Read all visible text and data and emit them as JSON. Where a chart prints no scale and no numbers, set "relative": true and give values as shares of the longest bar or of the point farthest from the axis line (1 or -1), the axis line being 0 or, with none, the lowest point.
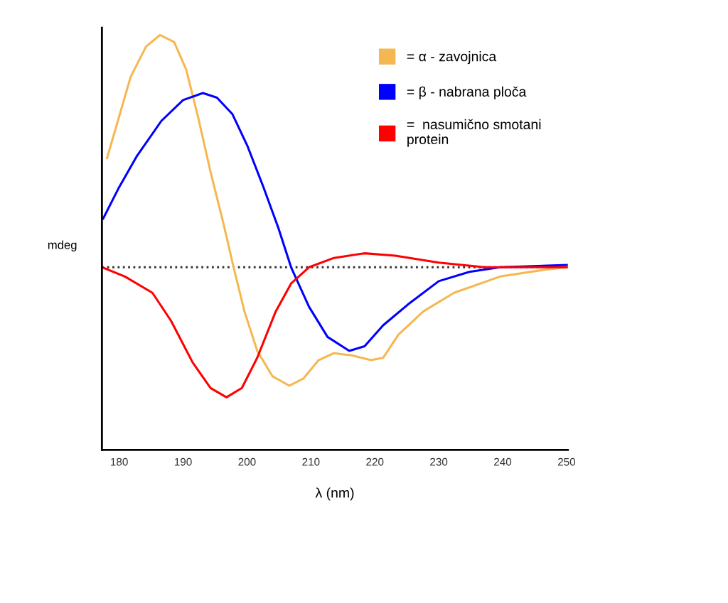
{
  "chart_data": {
    "type": "line",
    "relative": true,
    "xlabel": "λ (nm)",
    "ylabel": "mdeg",
    "xlim": [
      177.3,
      250.2
    ],
    "xticks": [
      180,
      190,
      200,
      210,
      220,
      230,
      240,
      250
    ],
    "tick_labels": "x",
    "grid": false,
    "legend": "top right",
    "marker": "none",
    "line_style": "solid",
    "ref_lines": [
      {
        "axis": "y",
        "value": 0,
        "color": "#333333",
        "line_style": "dotted"
      }
    ],
    "series": [
      {
        "name": "= α - zavojnica",
        "color": "#f5b851",
        "x": [
          178.1,
          179.9,
          181.8,
          184.2,
          186.4,
          188.6,
          190.5,
          192.4,
          194.3,
          196.3,
          197.9,
          199.6,
          201.6,
          204.0,
          206.6,
          208.8,
          211.2,
          213.6,
          216.5,
          219.4,
          221.3,
          223.7,
          227.6,
          232.4,
          239.6,
          246.8,
          250.2
        ],
        "values": [
          0.47,
          0.64,
          0.82,
          0.95,
          1.0,
          0.97,
          0.85,
          0.64,
          0.41,
          0.19,
          0.0,
          -0.19,
          -0.36,
          -0.47,
          -0.51,
          -0.48,
          -0.4,
          -0.37,
          -0.38,
          -0.4,
          -0.39,
          -0.29,
          -0.19,
          -0.11,
          -0.04,
          -0.01,
          0.0
        ]
      },
      {
        "name": "= β - nabrana ploča",
        "color": "#0000ff",
        "x": [
          177.5,
          179.9,
          182.8,
          186.6,
          190.0,
          193.1,
          195.3,
          197.7,
          200.1,
          202.5,
          204.9,
          206.9,
          209.7,
          212.6,
          216.0,
          218.4,
          221.3,
          225.2,
          230.0,
          234.8,
          239.6,
          250.2
        ],
        "values": [
          0.21,
          0.34,
          0.48,
          0.63,
          0.72,
          0.75,
          0.73,
          0.66,
          0.52,
          0.35,
          0.17,
          0.0,
          -0.17,
          -0.3,
          -0.36,
          -0.34,
          -0.25,
          -0.16,
          -0.06,
          -0.02,
          0.0,
          0.01
        ]
      },
      {
        "name": "=  nasumično smotani\nprotein",
        "color": "#ff0000",
        "x": [
          177.3,
          180.9,
          185.2,
          188.1,
          191.5,
          194.3,
          196.8,
          199.2,
          201.6,
          204.5,
          206.9,
          209.7,
          213.6,
          218.4,
          223.2,
          230.0,
          237.2,
          244.4,
          250.2
        ],
        "values": [
          0.0,
          -0.04,
          -0.11,
          -0.23,
          -0.41,
          -0.52,
          -0.56,
          -0.52,
          -0.39,
          -0.19,
          -0.07,
          0.0,
          0.04,
          0.06,
          0.05,
          0.02,
          0.0,
          0.0,
          0.0
        ]
      }
    ]
  }
}
